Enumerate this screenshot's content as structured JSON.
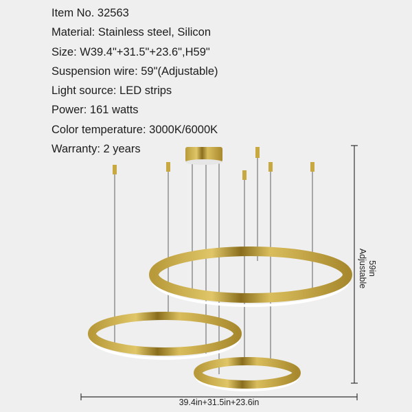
{
  "specs": [
    "Item No. 32563",
    "Material: Stainless steel, Silicon",
    "Size: W39.4\"+31.5\"+23.6\",H59\"",
    "Suspension wire: 59\"(Adjustable)",
    "Light source: LED strips",
    "Power: 161 watts",
    "Color temperature: 3000K/6000K",
    "Warranty: 2 years"
  ],
  "dimensions": {
    "width_label": "39.4in+31.5in+23.6in",
    "height_label": "59in",
    "height_note": "Adjustable"
  },
  "colors": {
    "background": "#efefef",
    "gold": "#c8a840",
    "led": "#ffffff"
  }
}
